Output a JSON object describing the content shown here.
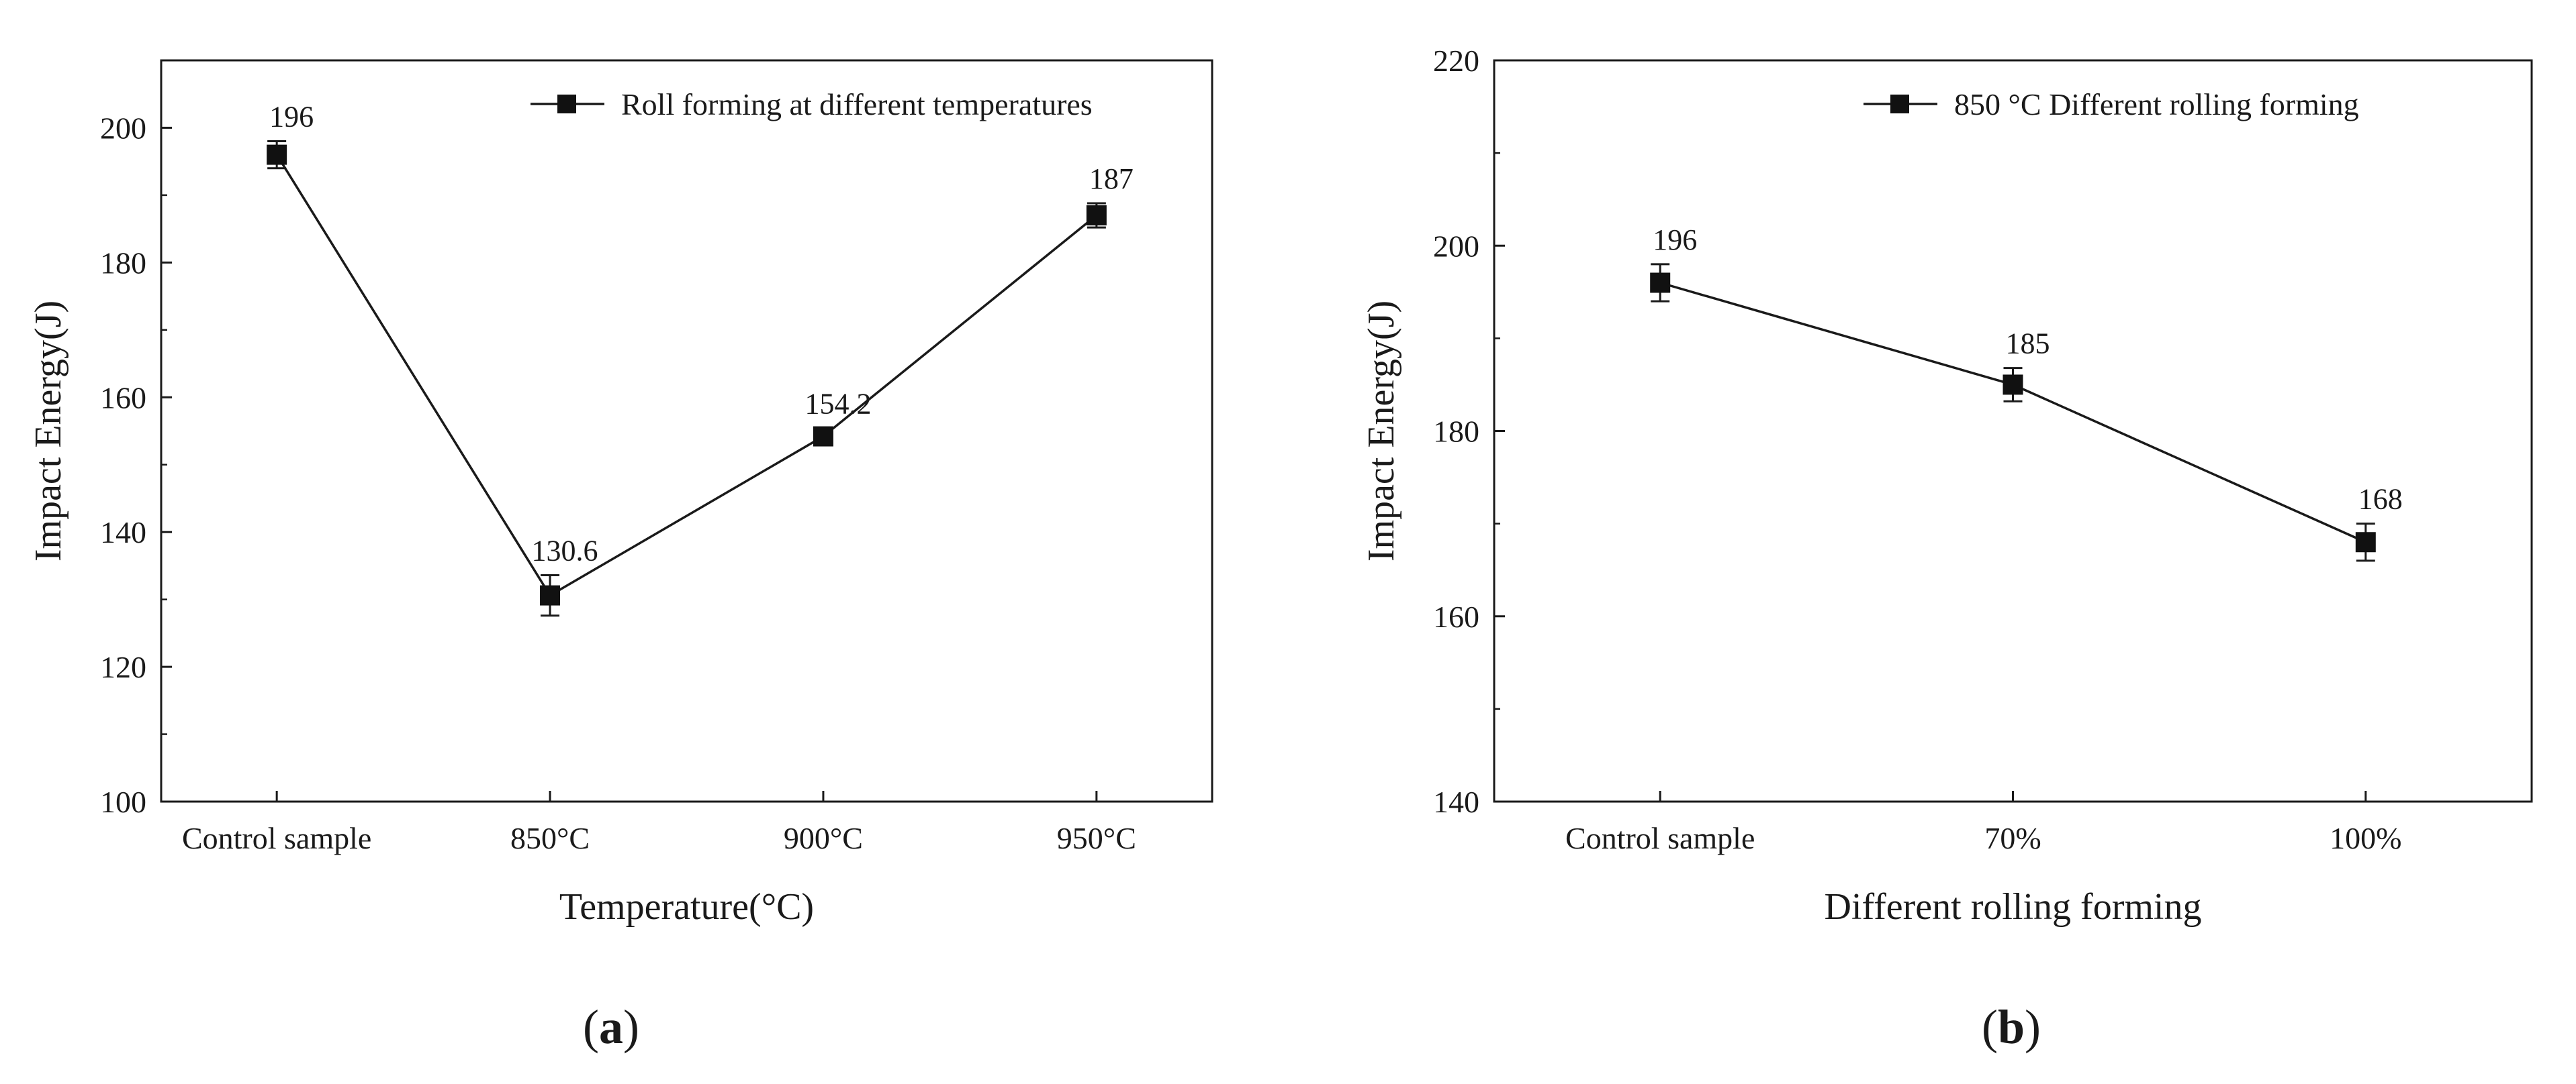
{
  "chart_data": [
    {
      "type": "line",
      "panel_label": "(a)",
      "title": "",
      "categories": [
        "Control sample",
        "850°C",
        "900°C",
        "950°C"
      ],
      "series": [
        {
          "name": "Roll forming at different temperatures",
          "values": [
            196,
            130.6,
            154.2,
            187
          ],
          "errors": [
            2,
            3,
            1.2,
            1.8
          ]
        }
      ],
      "data_labels": [
        "196",
        "130.6",
        "154.2",
        "187"
      ],
      "xlabel": "Temperature(°C)",
      "ylabel": "Impact Energy(J)",
      "ylim": [
        100,
        210
      ],
      "yticks": [
        100,
        120,
        140,
        160,
        180,
        200
      ],
      "ytick_labels": [
        "100",
        "120",
        "140",
        "160",
        "180",
        "200"
      ],
      "legend_position": "top-right",
      "grid": false
    },
    {
      "type": "line",
      "panel_label": "(b)",
      "title": "",
      "categories": [
        "Control sample",
        "70%",
        "100%"
      ],
      "series": [
        {
          "name": "850 °C Different rolling forming",
          "values": [
            196,
            185,
            168
          ],
          "errors": [
            2,
            1.8,
            2
          ]
        }
      ],
      "data_labels": [
        "196",
        "185",
        "168"
      ],
      "xlabel": "Different rolling forming",
      "ylabel": "Impact Energy(J)",
      "ylim": [
        140,
        220
      ],
      "yticks": [
        140,
        160,
        180,
        200,
        220
      ],
      "ytick_labels": [
        "140",
        "160",
        "180",
        "200",
        "220"
      ],
      "legend_position": "top-right",
      "grid": false
    }
  ]
}
